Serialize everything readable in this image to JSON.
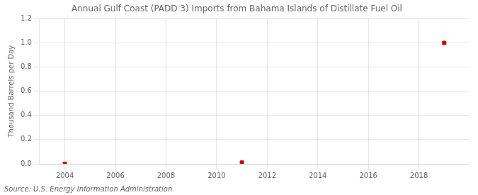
{
  "chart_data": {
    "type": "scatter",
    "title": "Annual Gulf Coast (PADD 3) Imports from Bahama Islands of Distillate Fuel Oil",
    "ylabel": "Thousand Barrels per Day",
    "annotations": [
      "Source: U.S. Energy Information Administration"
    ],
    "x": [
      2004,
      2011,
      2019
    ],
    "values": [
      0.0,
      0.01,
      1.0
    ],
    "color": "#cc0000",
    "marker": "square",
    "xlim": [
      2003.0,
      2020.0
    ],
    "ylim": [
      0.0,
      1.2
    ],
    "xticks": [
      2004,
      2006,
      2008,
      2010,
      2012,
      2014,
      2016,
      2018
    ],
    "yticks": [
      {
        "value": 0.0,
        "label": "0.0"
      },
      0.2,
      0.4,
      0.6,
      0.8,
      {
        "value": 1.0,
        "label": "1.0"
      },
      1.2
    ],
    "grid": true
  }
}
